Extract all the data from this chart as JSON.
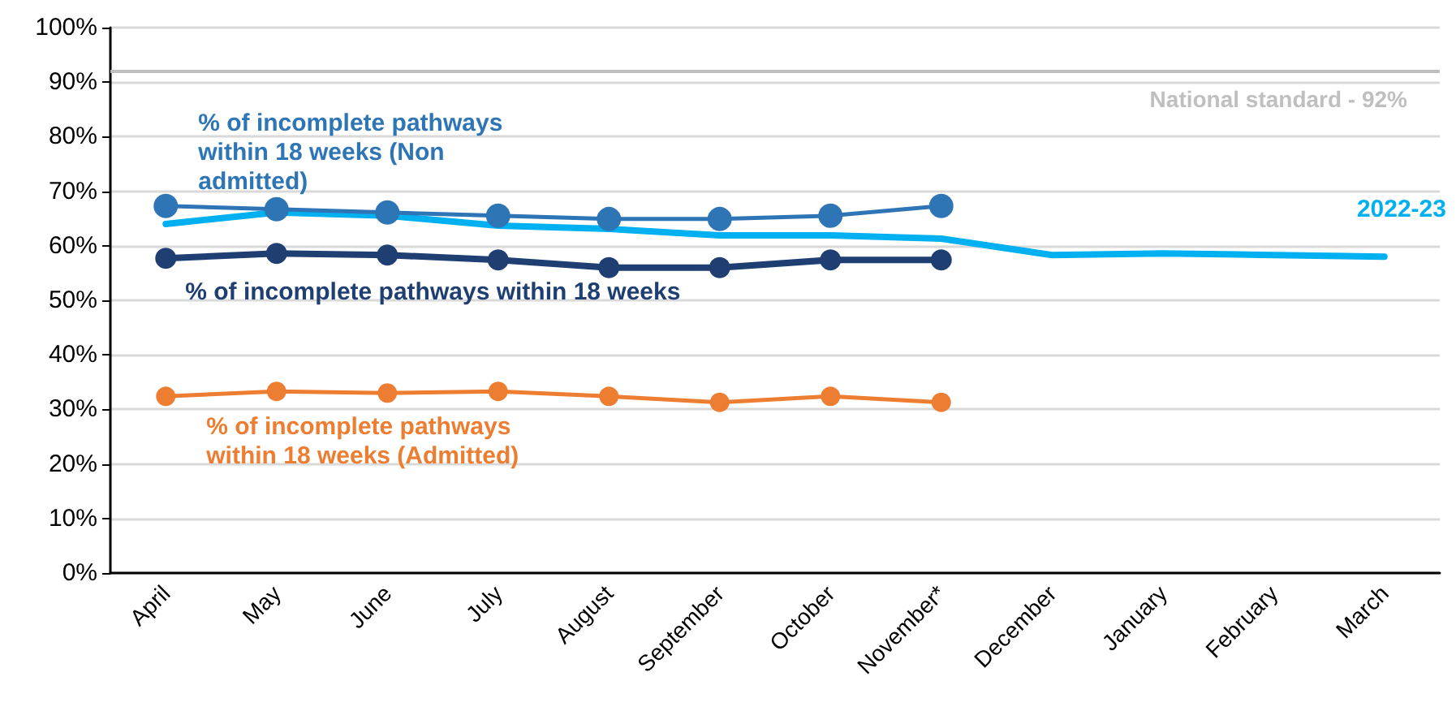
{
  "chart_data": {
    "type": "line",
    "categories": [
      "April",
      "May",
      "June",
      "July",
      "August",
      "September",
      "October",
      "November*",
      "December",
      "January",
      "February",
      "March"
    ],
    "ylim": [
      0,
      100
    ],
    "yticks": [
      {
        "value": 0,
        "label": "0%"
      },
      {
        "value": 10,
        "label": "10%"
      },
      {
        "value": 20,
        "label": "20%"
      },
      {
        "value": 30,
        "label": "30%"
      },
      {
        "value": 40,
        "label": "40%"
      },
      {
        "value": 50,
        "label": "50%"
      },
      {
        "value": 60,
        "label": "60%"
      },
      {
        "value": 70,
        "label": "70%"
      },
      {
        "value": 80,
        "label": "80%"
      },
      {
        "value": 90,
        "label": "90%"
      },
      {
        "value": 100,
        "label": "100%"
      }
    ],
    "grid": "y",
    "legend": false,
    "marker": "circle",
    "line_style": "solid",
    "ref_lines": [
      {
        "axis": "y",
        "value": 92,
        "label": "National standard - 92%",
        "color": "#bfbfbf"
      }
    ],
    "series": [
      {
        "name": "% of incomplete pathways within 18 weeks (Non admitted)",
        "color": "#2e75b6",
        "values": [
          67.3,
          66.7,
          66.1,
          65.5,
          64.9,
          64.9,
          65.5,
          67.3,
          null,
          null,
          null,
          null
        ]
      },
      {
        "name": "2022-23",
        "color": "#00b0f0",
        "marker": "none",
        "values": [
          64.0,
          66.1,
          65.5,
          63.7,
          63.1,
          61.9,
          61.9,
          61.3,
          58.3,
          58.6,
          58.3,
          58.0
        ]
      },
      {
        "name": "% of incomplete pathways within 18 weeks",
        "color": "#1f3f73",
        "values": [
          57.7,
          58.6,
          58.3,
          57.4,
          56.0,
          56.0,
          57.4,
          57.4,
          null,
          null,
          null,
          null
        ]
      },
      {
        "name": "% of incomplete pathways within 18 weeks (Admitted)",
        "color": "#ed7d31",
        "values": [
          32.4,
          33.3,
          33.0,
          33.3,
          32.4,
          31.3,
          32.4,
          31.3,
          null,
          null,
          null,
          null
        ]
      }
    ]
  }
}
